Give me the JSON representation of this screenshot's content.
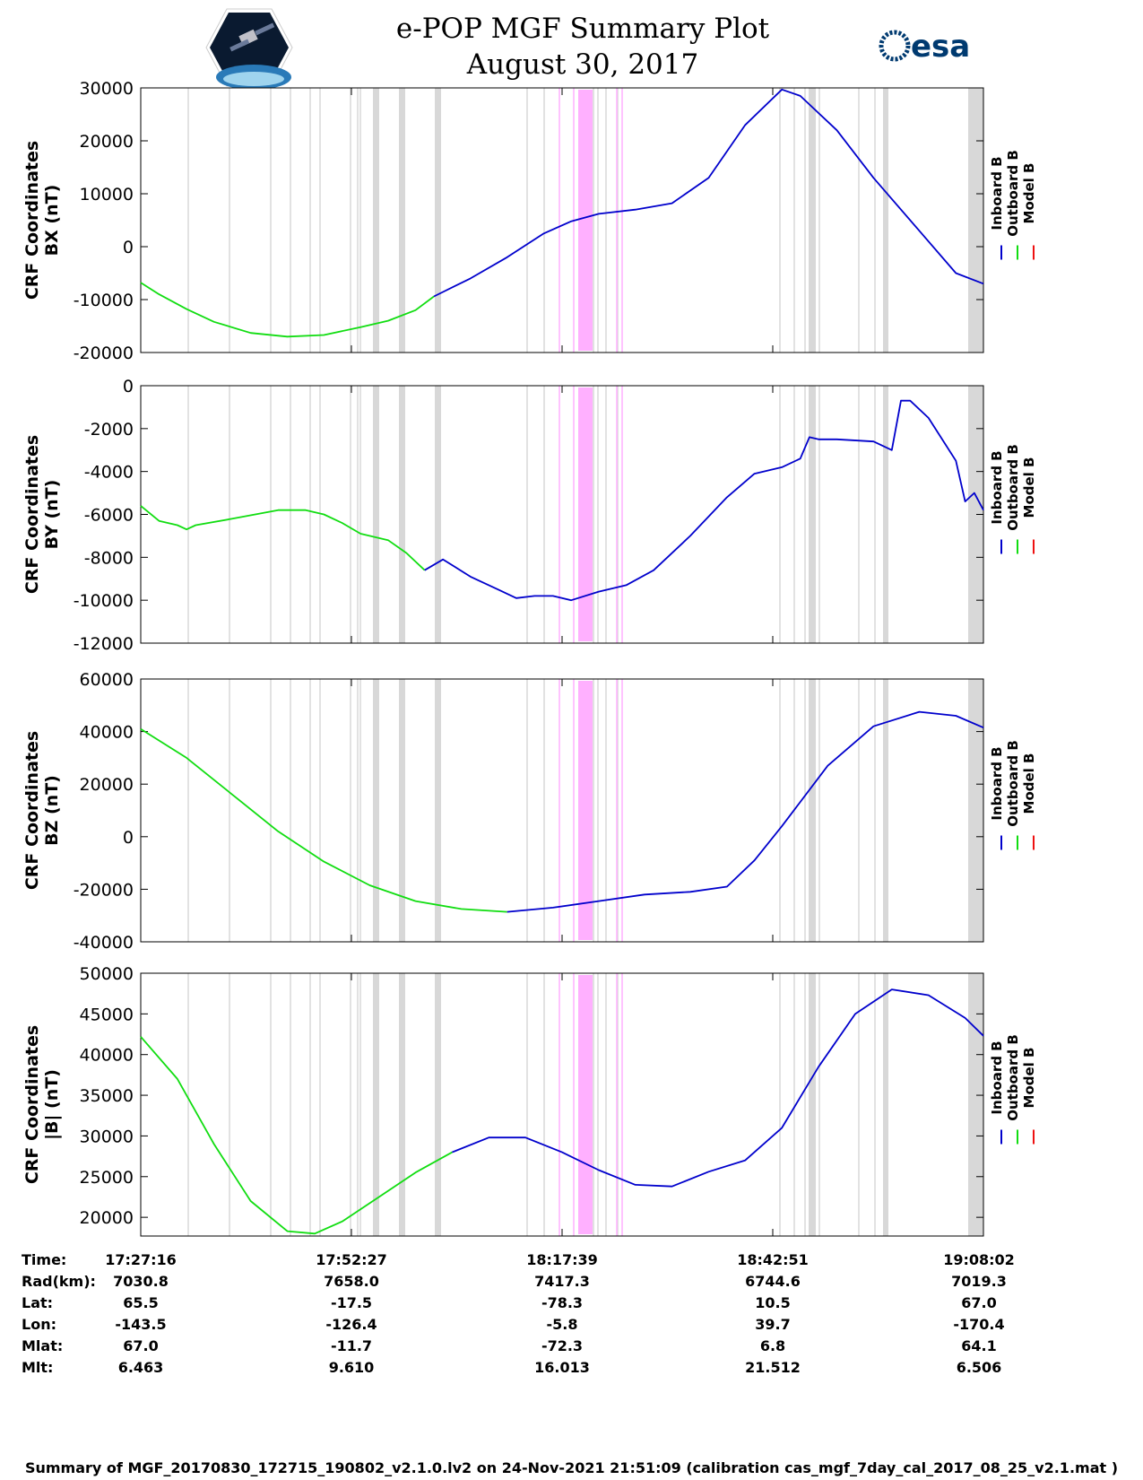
{
  "title": {
    "line1": "e-POP MGF Summary Plot",
    "line2": "August 30, 2017"
  },
  "logos": {
    "left": "cassiope-satellite-logo",
    "right": "esa"
  },
  "colors": {
    "inboard": "#0000cc",
    "outboard": "#11dd11",
    "model": "#ee1111",
    "gray_band": "#d8d8d8",
    "magenta_band": "#ffb0ff"
  },
  "time_axis": {
    "ticks": [
      "17:27:16",
      "17:52:27",
      "18:17:39",
      "18:42:51",
      "19:08:02"
    ],
    "range_minutes": [
      0,
      50.77
    ]
  },
  "legend": [
    "Inboard B",
    "Outboard B",
    "Model B"
  ],
  "ephemeris": {
    "labels": [
      "Time:",
      "Rad(km):",
      "Lat:",
      "Lon:",
      "Mlat:",
      "Mlt:"
    ],
    "columns": [
      [
        "17:27:16",
        "7030.8",
        "65.5",
        "-143.5",
        "67.0",
        "6.463"
      ],
      [
        "17:52:27",
        "7658.0",
        "-17.5",
        "-126.4",
        "-11.7",
        "9.610"
      ],
      [
        "18:17:39",
        "7417.3",
        "-78.3",
        "-5.8",
        "-72.3",
        "16.013"
      ],
      [
        "18:42:51",
        "6744.6",
        "10.5",
        "39.7",
        "6.8",
        "21.512"
      ],
      [
        "19:08:02",
        "7019.3",
        "67.0",
        "-170.4",
        "64.1",
        "6.506"
      ]
    ]
  },
  "footer": "Summary of MGF_20170830_172715_190802_v2.1.0.lv2 on 24-Nov-2021 21:51:09 (calibration cas_mgf_7day_cal_2017_08_25_v2.1.mat )",
  "chart_data": [
    {
      "type": "line",
      "ylabel": "CRF Coordinates BX (nT)",
      "ylabel_lines": [
        "CRF Coordinates",
        "BX (nT)"
      ],
      "ylim": [
        -20000,
        30000
      ],
      "yticks": [
        "30000",
        "20000",
        "10000",
        "0",
        "-10000",
        "-20000"
      ],
      "ytick_values": [
        30000,
        20000,
        10000,
        0,
        -10000,
        -20000
      ],
      "x_unit": "minutes after 17:27:16",
      "outboard": {
        "x": [
          0,
          2,
          5,
          8,
          12,
          16,
          20,
          24,
          27,
          30,
          32
        ],
        "y": [
          -6800,
          -9000,
          -11800,
          -14200,
          -16300,
          -17000,
          -16700,
          -15200,
          -14000,
          -12000,
          -9400
        ]
      },
      "inboard": {
        "x": [
          32,
          36,
          40,
          44,
          47,
          50,
          54,
          58,
          62,
          66,
          70,
          72,
          76,
          80,
          85,
          89,
          92
        ],
        "y": [
          -9400,
          -6000,
          -2000,
          2500,
          4800,
          6200,
          7000,
          8200,
          13000,
          23000,
          29700,
          28500,
          22000,
          13000,
          3000,
          -5000,
          -7000
        ]
      }
    },
    {
      "type": "line",
      "ylabel": "CRF Coordinates BY (nT)",
      "ylabel_lines": [
        "CRF Coordinates",
        "BY (nT)"
      ],
      "ylim": [
        -12000,
        0
      ],
      "yticks": [
        "0",
        "-2000",
        "-4000",
        "-6000",
        "-8000",
        "-10000",
        "-12000"
      ],
      "ytick_values": [
        0,
        -2000,
        -4000,
        -6000,
        -8000,
        -10000,
        -12000
      ],
      "outboard": {
        "x": [
          0,
          2,
          4,
          5,
          6,
          10,
          15,
          18,
          20,
          22,
          24,
          27,
          29,
          31
        ],
        "y": [
          -5600,
          -6300,
          -6500,
          -6700,
          -6500,
          -6200,
          -5800,
          -5800,
          -6000,
          -6400,
          -6900,
          -7200,
          -7800,
          -8600
        ]
      },
      "inboard": {
        "x": [
          31,
          33,
          36,
          39,
          41,
          43,
          45,
          47,
          50,
          53,
          56,
          60,
          64,
          67,
          70,
          72,
          73,
          74,
          76,
          80,
          82,
          83,
          84,
          86,
          89,
          90,
          91,
          92
        ],
        "y": [
          -8600,
          -8100,
          -8900,
          -9500,
          -9900,
          -9800,
          -9800,
          -10000,
          -9600,
          -9300,
          -8600,
          -7000,
          -5200,
          -4100,
          -3800,
          -3400,
          -2400,
          -2500,
          -2500,
          -2600,
          -3000,
          -700,
          -700,
          -1500,
          -3500,
          -5400,
          -5000,
          -5800
        ]
      }
    },
    {
      "type": "line",
      "ylabel": "CRF Coordinates BZ (nT)",
      "ylabel_lines": [
        "CRF Coordinates",
        "BZ (nT)"
      ],
      "ylim": [
        -40000,
        60000
      ],
      "yticks": [
        "60000",
        "40000",
        "20000",
        "0",
        "-20000",
        "-40000"
      ],
      "ytick_values": [
        60000,
        40000,
        20000,
        0,
        -20000,
        -40000
      ],
      "outboard": {
        "x": [
          0,
          5,
          10,
          15,
          20,
          25,
          30,
          35,
          40
        ],
        "y": [
          41000,
          30000,
          16000,
          2000,
          -9500,
          -18500,
          -24500,
          -27500,
          -28600
        ]
      },
      "inboard": {
        "x": [
          40,
          45,
          50,
          55,
          60,
          64,
          67,
          70,
          75,
          80,
          85,
          89,
          92
        ],
        "y": [
          -28600,
          -27000,
          -24500,
          -22000,
          -21000,
          -19000,
          -9000,
          4000,
          27000,
          42000,
          47500,
          46000,
          41500
        ]
      }
    },
    {
      "type": "line",
      "ylabel": "CRF Coordinates |B| (nT)",
      "ylabel_lines": [
        "CRF Coordinates",
        "|B| (nT)"
      ],
      "ylim": [
        17700,
        50000
      ],
      "yticks": [
        "50000",
        "45000",
        "40000",
        "35000",
        "30000",
        "25000",
        "20000"
      ],
      "ytick_values": [
        50000,
        45000,
        40000,
        35000,
        30000,
        25000,
        20000
      ],
      "outboard": {
        "x": [
          0,
          4,
          8,
          12,
          16,
          19,
          22,
          26,
          30,
          34
        ],
        "y": [
          42200,
          37000,
          29000,
          22000,
          18300,
          18000,
          19500,
          22500,
          25500,
          28000
        ]
      },
      "inboard": {
        "x": [
          34,
          38,
          42,
          46,
          50,
          54,
          58,
          62,
          66,
          70,
          74,
          78,
          82,
          86,
          90,
          92
        ],
        "y": [
          28000,
          29800,
          29800,
          28000,
          25800,
          24000,
          23800,
          25600,
          27000,
          31000,
          38500,
          45000,
          48000,
          47300,
          44500,
          42300
        ]
      }
    }
  ]
}
